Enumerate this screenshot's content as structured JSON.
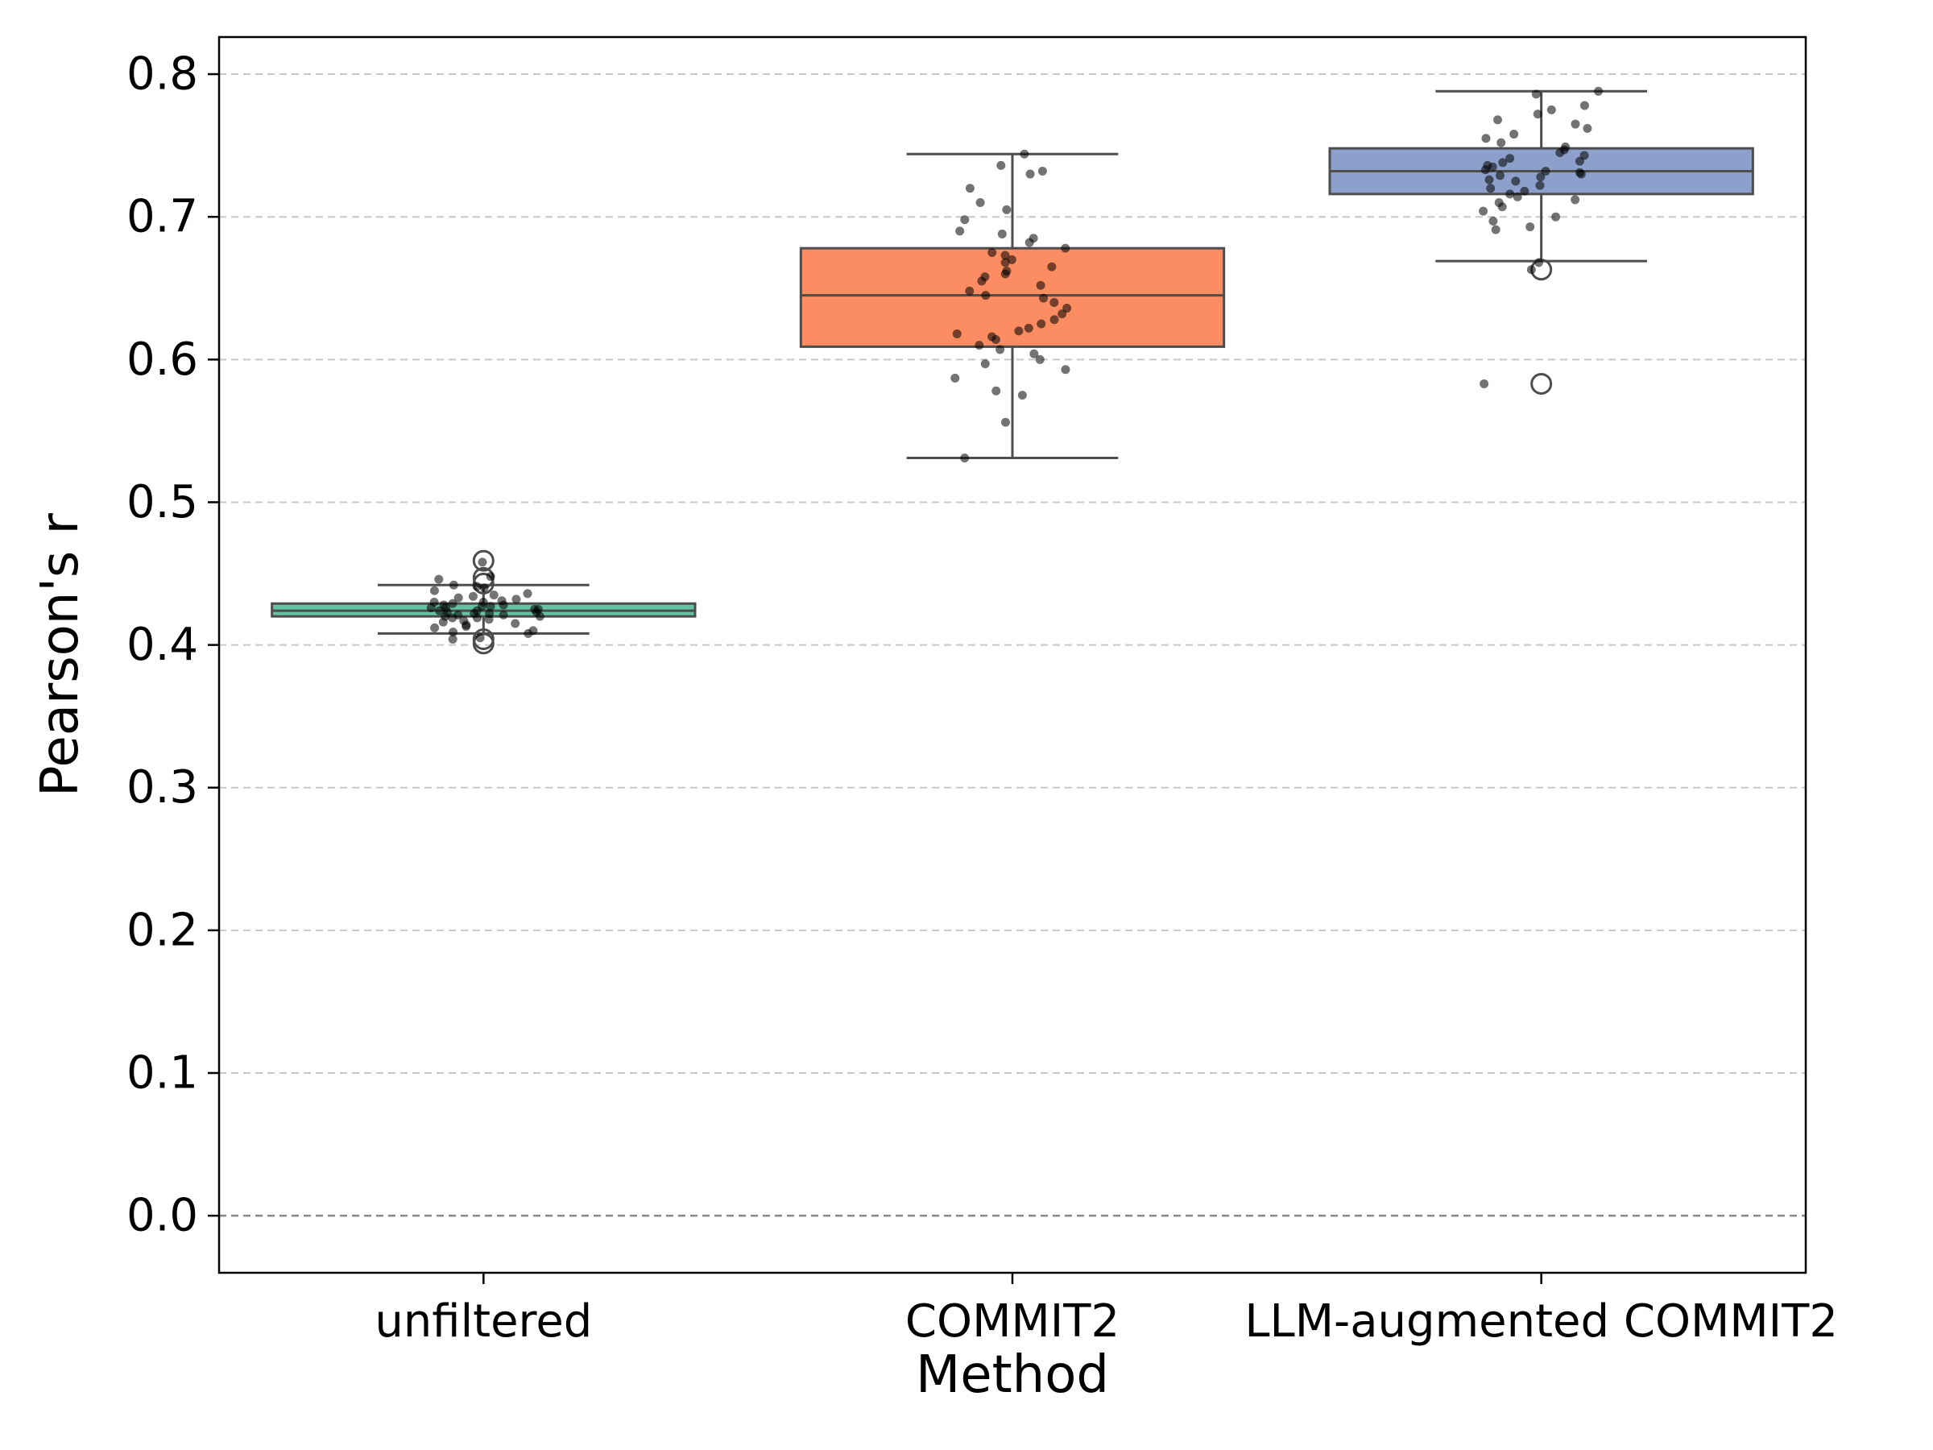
{
  "chart_data": {
    "type": "box",
    "title": "",
    "xlabel": "Method",
    "ylabel": "Pearson's r",
    "ylim": [
      -0.04,
      0.826
    ],
    "yticks": [
      0.0,
      0.1,
      0.2,
      0.3,
      0.4,
      0.5,
      0.6,
      0.7,
      0.8
    ],
    "ytick_labels": [
      "0.0",
      "0.1",
      "0.2",
      "0.3",
      "0.4",
      "0.5",
      "0.6",
      "0.7",
      "0.8"
    ],
    "grid": "y-dashed",
    "zero_line": true,
    "categories": [
      "unfiltered",
      "COMMIT2",
      "LLM-augmented COMMIT2"
    ],
    "series": [
      {
        "name": "unfiltered",
        "color": "#66c2a5",
        "whisker_low": 0.408,
        "q1": 0.42,
        "median": 0.424,
        "q3": 0.429,
        "whisker_high": 0.442,
        "outliers": [
          0.459,
          0.447,
          0.443,
          0.404,
          0.401
        ],
        "points": [
          0.458,
          0.448,
          0.446,
          0.442,
          0.441,
          0.44,
          0.438,
          0.436,
          0.435,
          0.434,
          0.433,
          0.432,
          0.431,
          0.43,
          0.43,
          0.429,
          0.428,
          0.428,
          0.427,
          0.427,
          0.426,
          0.426,
          0.425,
          0.425,
          0.424,
          0.424,
          0.423,
          0.423,
          0.422,
          0.422,
          0.421,
          0.421,
          0.42,
          0.42,
          0.419,
          0.419,
          0.418,
          0.417,
          0.416,
          0.415,
          0.414,
          0.413,
          0.412,
          0.41,
          0.409,
          0.408,
          0.405,
          0.404
        ]
      },
      {
        "name": "COMMIT2",
        "color": "#fc8d62",
        "whisker_low": 0.531,
        "q1": 0.609,
        "median": 0.645,
        "q3": 0.678,
        "whisker_high": 0.744,
        "outliers": [],
        "points": [
          0.744,
          0.736,
          0.732,
          0.73,
          0.72,
          0.71,
          0.705,
          0.698,
          0.69,
          0.688,
          0.685,
          0.682,
          0.678,
          0.675,
          0.673,
          0.67,
          0.668,
          0.665,
          0.662,
          0.66,
          0.658,
          0.655,
          0.652,
          0.648,
          0.645,
          0.643,
          0.64,
          0.636,
          0.632,
          0.628,
          0.625,
          0.622,
          0.62,
          0.618,
          0.616,
          0.614,
          0.61,
          0.607,
          0.604,
          0.6,
          0.597,
          0.593,
          0.587,
          0.578,
          0.575,
          0.556,
          0.531
        ]
      },
      {
        "name": "LLM-augmented COMMIT2",
        "color": "#8da0cb",
        "whisker_low": 0.669,
        "q1": 0.716,
        "median": 0.732,
        "q3": 0.748,
        "whisker_high": 0.788,
        "outliers": [
          0.663,
          0.583
        ],
        "points": [
          0.788,
          0.786,
          0.778,
          0.775,
          0.772,
          0.768,
          0.765,
          0.762,
          0.758,
          0.755,
          0.752,
          0.749,
          0.747,
          0.745,
          0.743,
          0.741,
          0.739,
          0.738,
          0.736,
          0.735,
          0.733,
          0.732,
          0.731,
          0.73,
          0.729,
          0.728,
          0.726,
          0.725,
          0.722,
          0.72,
          0.718,
          0.716,
          0.714,
          0.712,
          0.71,
          0.707,
          0.704,
          0.7,
          0.697,
          0.693,
          0.691,
          0.668,
          0.663,
          0.583
        ]
      }
    ]
  }
}
